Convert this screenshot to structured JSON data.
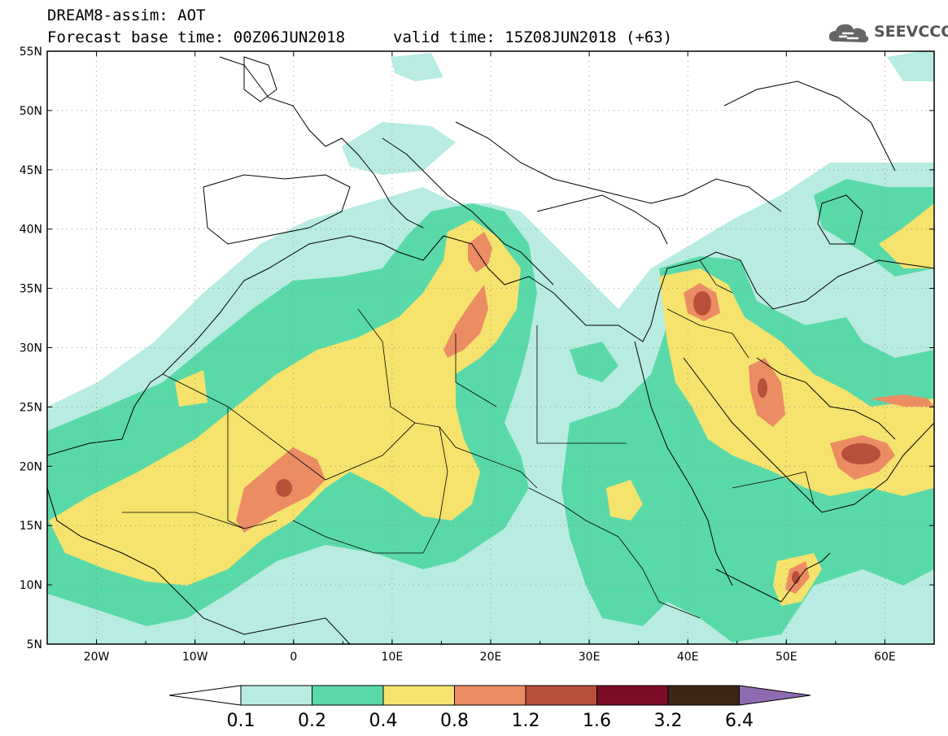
{
  "header": {
    "title": "DREAM8-assim: AOT",
    "base_time": "Forecast base time: 00Z06JUN2018",
    "valid_time": "valid time: 15Z08JUN2018 (+63)"
  },
  "logo": {
    "text": "SEEVCCC",
    "icon": "cloud-icon"
  },
  "map": {
    "lon_range": [
      -25,
      65
    ],
    "lat_range": [
      5,
      55
    ],
    "lat_labels": [
      "55N",
      "50N",
      "45N",
      "40N",
      "35N",
      "30N",
      "25N",
      "20N",
      "15N",
      "10N",
      "5N"
    ],
    "lon_labels": [
      "20W",
      "10W",
      "0",
      "10E",
      "20E",
      "30E",
      "40E",
      "50E",
      "60E"
    ],
    "grid": "dotted"
  },
  "colorbar": {
    "labels": [
      "0.1",
      "0.2",
      "0.4",
      "0.8",
      "1.2",
      "1.6",
      "3.2",
      "6.4"
    ],
    "colors": [
      "#ffffff",
      "#b8ece2",
      "#5ad9a8",
      "#f5e36d",
      "#ec8c63",
      "#b84f3a",
      "#7d0c26",
      "#3c2614",
      "#8e6bb0"
    ]
  }
}
